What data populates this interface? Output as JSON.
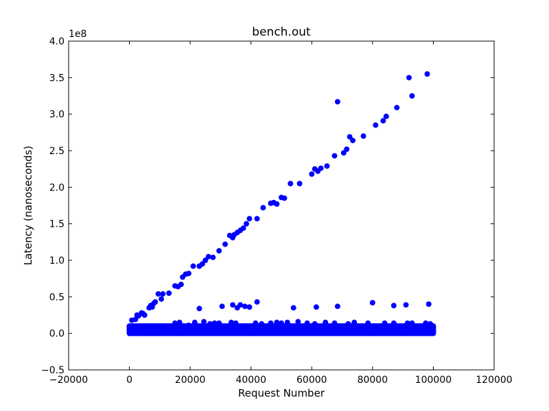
{
  "chart_data": {
    "type": "scatter",
    "title": "bench.out",
    "xlabel": "Request Number",
    "ylabel": "Latency (nanoseconds)",
    "y_offset_label": "1e8",
    "xlim": [
      -20000,
      120000
    ],
    "ylim": [
      -0.5,
      4.0
    ],
    "y_scale_factor": 100000000,
    "x_ticks": [
      -20000,
      0,
      20000,
      40000,
      60000,
      80000,
      100000,
      120000
    ],
    "x_tick_labels": [
      "−20000",
      "0",
      "20000",
      "40000",
      "60000",
      "80000",
      "100000",
      "120000"
    ],
    "y_ticks": [
      -0.5,
      0.0,
      0.5,
      1.0,
      1.5,
      2.0,
      2.5,
      3.0,
      3.5,
      4.0
    ],
    "y_tick_labels": [
      "−0.5",
      "0.0",
      "0.5",
      "1.0",
      "1.5",
      "2.0",
      "2.5",
      "3.0",
      "3.5",
      "4.0"
    ],
    "grid": false,
    "marker_color": "#0000ff",
    "series": [
      {
        "values_note": "y values in units of 1e8 ns",
        "points": [
          [
            800,
            0.18
          ],
          [
            2000,
            0.19
          ],
          [
            2500,
            0.25
          ],
          [
            3000,
            0.24
          ],
          [
            4000,
            0.28
          ],
          [
            4500,
            0.27
          ],
          [
            5000,
            0.25
          ],
          [
            6500,
            0.35
          ],
          [
            7000,
            0.38
          ],
          [
            7500,
            0.36
          ],
          [
            8000,
            0.41
          ],
          [
            8500,
            0.43
          ],
          [
            9500,
            0.54
          ],
          [
            10500,
            0.47
          ],
          [
            11000,
            0.54
          ],
          [
            13000,
            0.55
          ],
          [
            15000,
            0.65
          ],
          [
            16000,
            0.64
          ],
          [
            17000,
            0.67
          ],
          [
            17500,
            0.77
          ],
          [
            18500,
            0.81
          ],
          [
            19500,
            0.82
          ],
          [
            21000,
            0.92
          ],
          [
            23000,
            0.92
          ],
          [
            24000,
            0.95
          ],
          [
            25000,
            1.0
          ],
          [
            26000,
            1.05
          ],
          [
            27500,
            1.04
          ],
          [
            29500,
            1.13
          ],
          [
            31500,
            1.22
          ],
          [
            33000,
            1.34
          ],
          [
            34000,
            1.31
          ],
          [
            34500,
            1.35
          ],
          [
            35500,
            1.38
          ],
          [
            36500,
            1.41
          ],
          [
            37500,
            1.44
          ],
          [
            38500,
            1.5
          ],
          [
            39500,
            1.57
          ],
          [
            42000,
            1.57
          ],
          [
            44000,
            1.72
          ],
          [
            46500,
            1.78
          ],
          [
            47500,
            1.79
          ],
          [
            48500,
            1.77
          ],
          [
            50000,
            1.86
          ],
          [
            51000,
            1.85
          ],
          [
            53000,
            2.05
          ],
          [
            56000,
            2.05
          ],
          [
            60000,
            2.18
          ],
          [
            61000,
            2.25
          ],
          [
            62000,
            2.22
          ],
          [
            63000,
            2.26
          ],
          [
            65000,
            2.29
          ],
          [
            67500,
            2.43
          ],
          [
            68500,
            3.17
          ],
          [
            70500,
            2.47
          ],
          [
            71500,
            2.52
          ],
          [
            72500,
            2.69
          ],
          [
            73500,
            2.64
          ],
          [
            77000,
            2.7
          ],
          [
            81000,
            2.85
          ],
          [
            83500,
            2.91
          ],
          [
            84500,
            2.97
          ],
          [
            88000,
            3.09
          ],
          [
            92000,
            3.5
          ],
          [
            93000,
            3.25
          ],
          [
            98000,
            3.55
          ],
          [
            23000,
            0.34
          ],
          [
            30500,
            0.37
          ],
          [
            34000,
            0.39
          ],
          [
            35500,
            0.35
          ],
          [
            36500,
            0.39
          ],
          [
            38000,
            0.37
          ],
          [
            39500,
            0.36
          ],
          [
            42000,
            0.43
          ],
          [
            54000,
            0.35
          ],
          [
            61500,
            0.36
          ],
          [
            68500,
            0.37
          ],
          [
            80000,
            0.42
          ],
          [
            87000,
            0.38
          ],
          [
            91000,
            0.39
          ],
          [
            98500,
            0.4
          ],
          [
            15000,
            0.14
          ],
          [
            16500,
            0.15
          ],
          [
            19500,
            0.11
          ],
          [
            21500,
            0.15
          ],
          [
            24500,
            0.16
          ],
          [
            26500,
            0.13
          ],
          [
            28000,
            0.14
          ],
          [
            29500,
            0.14
          ],
          [
            33500,
            0.15
          ],
          [
            35000,
            0.14
          ],
          [
            41500,
            0.14
          ],
          [
            43500,
            0.13
          ],
          [
            46500,
            0.14
          ],
          [
            48500,
            0.15
          ],
          [
            50000,
            0.14
          ],
          [
            52000,
            0.15
          ],
          [
            55500,
            0.16
          ],
          [
            58500,
            0.14
          ],
          [
            61000,
            0.13
          ],
          [
            64500,
            0.15
          ],
          [
            67500,
            0.14
          ],
          [
            72000,
            0.13
          ],
          [
            74000,
            0.15
          ],
          [
            78500,
            0.14
          ],
          [
            84000,
            0.14
          ],
          [
            87000,
            0.14
          ],
          [
            91500,
            0.14
          ],
          [
            93000,
            0.14
          ],
          [
            97500,
            0.14
          ],
          [
            99000,
            0.13
          ]
        ]
      }
    ],
    "dense_band": {
      "x_range": [
        0,
        100000
      ],
      "y_range": [
        0.0,
        0.1
      ]
    }
  }
}
